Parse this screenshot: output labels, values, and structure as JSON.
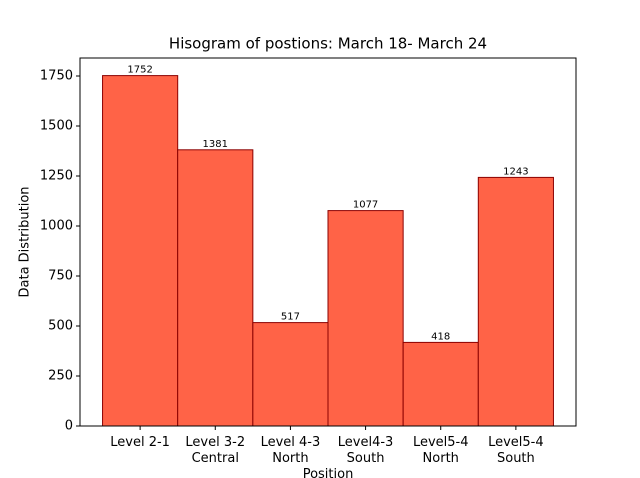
{
  "chart_data": {
    "type": "bar",
    "title": "Hisogram of postions: March 18- March 24",
    "x_label": "Position",
    "y_label": "Data Distribution",
    "categories": [
      [
        "Level 2-1"
      ],
      [
        "Level 3-2",
        "Central"
      ],
      [
        "Level 4-3",
        "North"
      ],
      [
        "Level4-3",
        "South"
      ],
      [
        "Level5-4",
        "North"
      ],
      [
        "Level5-4",
        "South"
      ]
    ],
    "values": [
      1752,
      1381,
      517,
      1077,
      418,
      1243
    ],
    "color": "#ff6347",
    "edgecolor": "#8b0000",
    "ylim": [
      0,
      1840
    ],
    "yticks": [
      0,
      250,
      500,
      750,
      1000,
      1250,
      1500,
      1750
    ]
  }
}
